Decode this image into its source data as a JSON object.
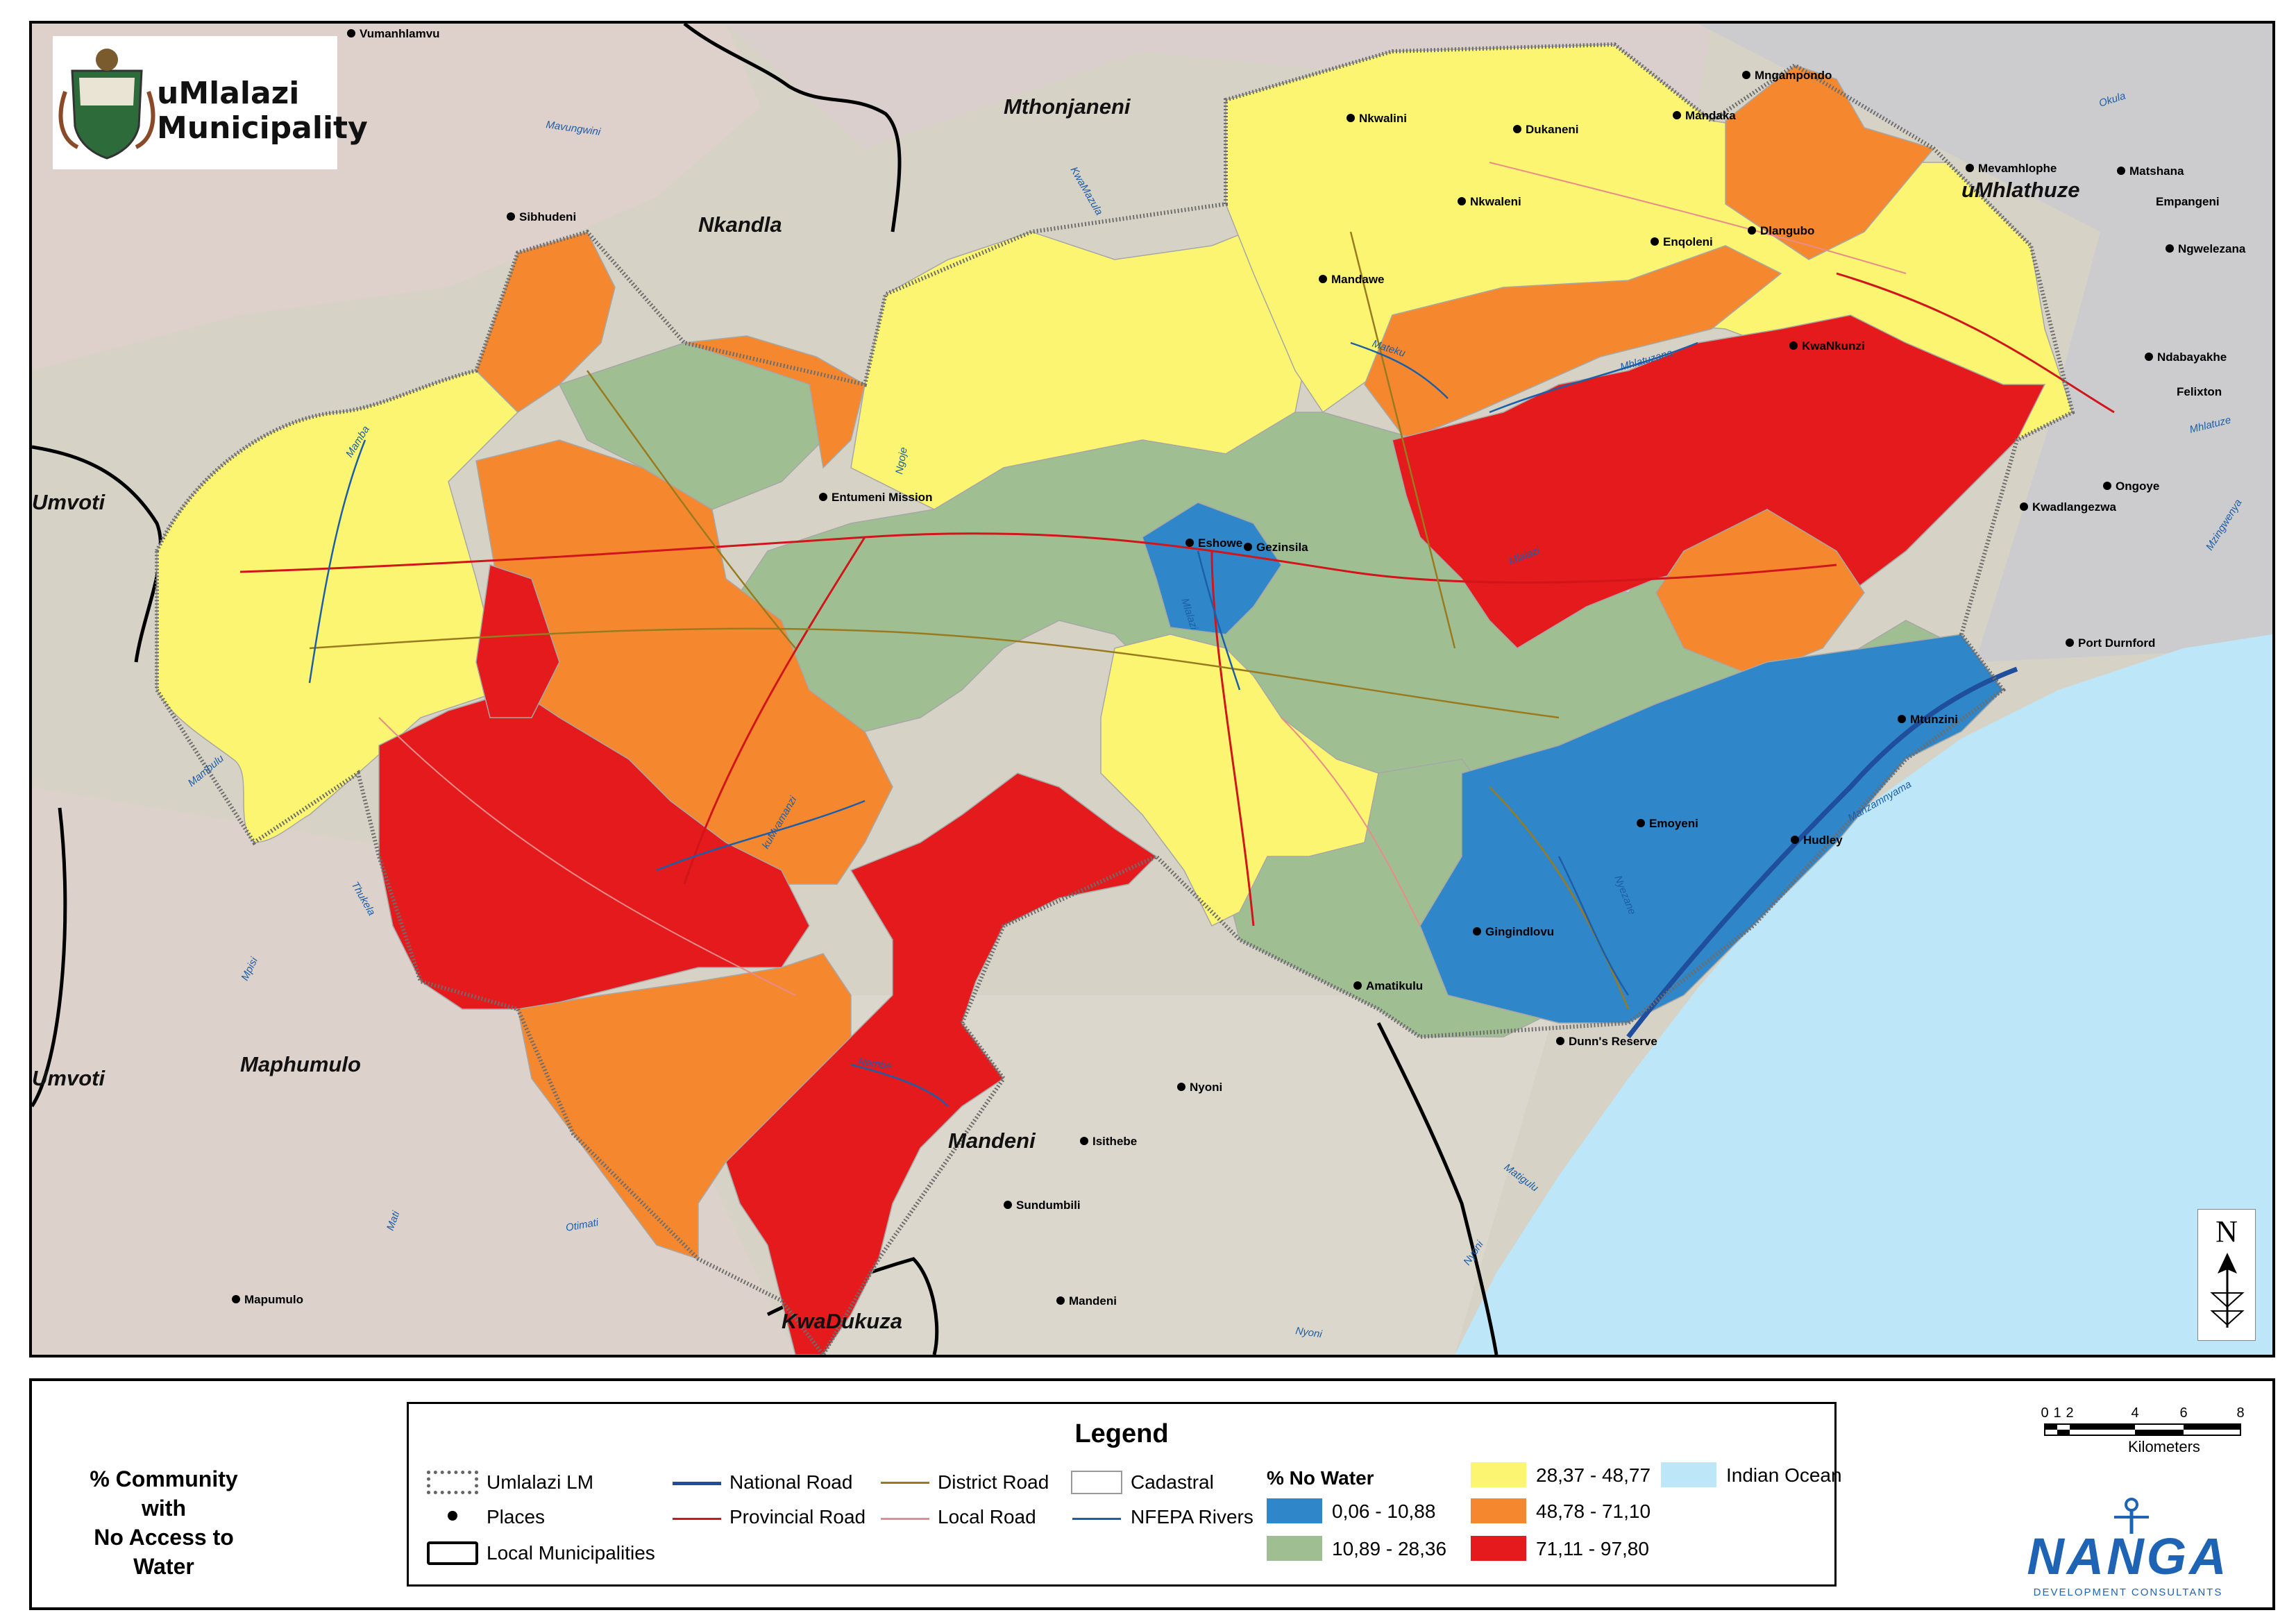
{
  "logo": {
    "title_line1": "uMlalazi",
    "title_line2": "Municipality"
  },
  "municipalities": [
    {
      "name": "Mthonjaneni"
    },
    {
      "name": "Nkandla"
    },
    {
      "name": "uMhlathuze"
    },
    {
      "name": "Umvoti"
    },
    {
      "name": "Umvoti"
    },
    {
      "name": "Maphumulo"
    },
    {
      "name": "Mandeni"
    },
    {
      "name": "KwaDukuza"
    }
  ],
  "places": [
    "Vumanhlamvu",
    "Sibhudeni",
    "Nkwalini",
    "Dukaneni",
    "Mandaka",
    "Mngampondo",
    "Nkwaleni",
    "Enqoleni",
    "Dlangubo",
    "Mandawe",
    "KwaNkunzi",
    "Mevamhlophe",
    "Matshana",
    "Empangeni",
    "Ngwelezana",
    "Ndabayakhe",
    "Felixton",
    "Ongoye",
    "Kwadlangezwa",
    "Entumeni Mission",
    "Eshowe",
    "Gezinsila",
    "Port Durnford",
    "Mtunzini",
    "Emoyeni",
    "Hudley",
    "Gingindlovu",
    "Amatikulu",
    "Dunn's Reserve",
    "Nyoni",
    "Isithebe",
    "Sundumbili",
    "Mandeni",
    "Mapumulo"
  ],
  "rivers": [
    "Mavungwini",
    "Okula",
    "Mateku",
    "Mhlatuzana",
    "Mhlatuze",
    "Mlalazi",
    "Mzingwenya",
    "Ngoje",
    "Mambulu",
    "Mamba",
    "KwaMazula",
    "Mlalazi",
    "kuMvamanzi",
    "Thukela",
    "Mpisi",
    "Mati",
    "Otimati",
    "Nembe",
    "Nyezane",
    "Manzamnyama",
    "Matigulu",
    "Nyoni",
    "Nyoni"
  ],
  "north": "N",
  "caption": {
    "line1": "% Community with",
    "line2": "No Access to",
    "line3": "Water"
  },
  "legend": {
    "title": "Legend",
    "items": {
      "umlalazi_lm": "Umlalazi LM",
      "places": "Places",
      "local_municipalities": "Local Municipalities",
      "national_road": "National Road",
      "provincial_road": "Provincial Road",
      "district_road": "District Road",
      "local_road": "Local Road",
      "cadastral": "Cadastral",
      "nfepa_rivers": "NFEPA Rivers",
      "indian_ocean": "Indian Ocean"
    },
    "classes_title": "% No Water",
    "classes": [
      {
        "label": "0,06 - 10,88",
        "color": "#2f86c8"
      },
      {
        "label": "10,89 - 28,36",
        "color": "#9fbf93"
      },
      {
        "label": "28,37 - 48,77",
        "color": "#fbf571"
      },
      {
        "label": "48,78 - 71,10",
        "color": "#f5882f"
      },
      {
        "label": "71,11 - 97,80",
        "color": "#e41a1c"
      }
    ]
  },
  "scale": {
    "ticks": [
      "0",
      "1",
      "2",
      "4",
      "6",
      "8"
    ],
    "units": "Kilometers"
  },
  "company": {
    "name": "NANGA",
    "sub": "DEVELOPMENT CONSULTANTS"
  },
  "colors": {
    "ocean": "#bde6f8",
    "land_bg": "#d9d7cf",
    "class_blue": "#2f86c8",
    "class_green": "#9fbf93",
    "class_yellow": "#fbf571",
    "class_orange": "#f5882f",
    "class_red": "#e41a1c"
  }
}
